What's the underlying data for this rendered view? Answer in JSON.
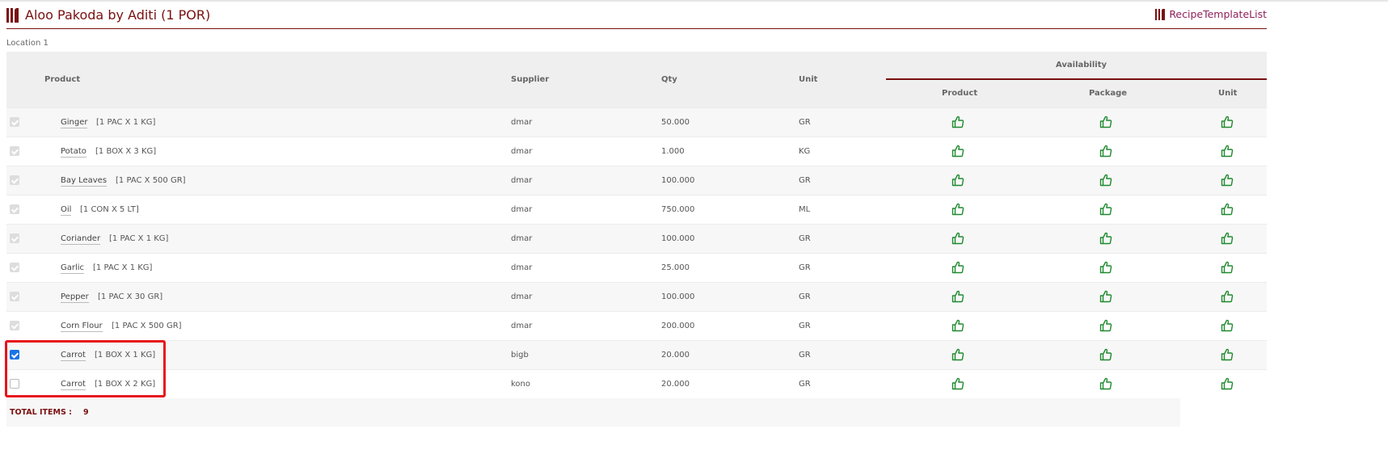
{
  "header": {
    "title": "Aloo Pakoda by Aditi (1 POR)",
    "link_label": "RecipeTemplateList"
  },
  "location": "Location 1",
  "columns": {
    "product": "Product",
    "supplier": "Supplier",
    "qty": "Qty",
    "unit": "Unit",
    "availability": "Availability",
    "avail_product": "Product",
    "avail_package": "Package",
    "avail_unit": "Unit"
  },
  "rows": [
    {
      "checkbox": "disabled-checked",
      "name": "Ginger",
      "pack": "[1 PAC X 1 KG]",
      "supplier": "dmar",
      "qty": "50.000",
      "unit": "GR",
      "availability": [
        "thumbs-up",
        "thumbs-up",
        "thumbs-up"
      ]
    },
    {
      "checkbox": "disabled-checked",
      "name": "Potato",
      "pack": "[1 BOX X 3 KG]",
      "supplier": "dmar",
      "qty": "1.000",
      "unit": "KG",
      "availability": [
        "thumbs-up",
        "thumbs-up",
        "thumbs-up"
      ]
    },
    {
      "checkbox": "disabled-checked",
      "name": "Bay Leaves",
      "pack": "[1 PAC X 500 GR]",
      "supplier": "dmar",
      "qty": "100.000",
      "unit": "GR",
      "availability": [
        "thumbs-up",
        "thumbs-up",
        "thumbs-up"
      ]
    },
    {
      "checkbox": "disabled-checked",
      "name": "Oil",
      "pack": "[1 CON X 5 LT]",
      "supplier": "dmar",
      "qty": "750.000",
      "unit": "ML",
      "availability": [
        "thumbs-up",
        "thumbs-up",
        "thumbs-up"
      ]
    },
    {
      "checkbox": "disabled-checked",
      "name": "Coriander",
      "pack": "[1 PAC X 1 KG]",
      "supplier": "dmar",
      "qty": "100.000",
      "unit": "GR",
      "availability": [
        "thumbs-up",
        "thumbs-up",
        "thumbs-up"
      ]
    },
    {
      "checkbox": "disabled-checked",
      "name": "Garlic",
      "pack": "[1 PAC X 1 KG]",
      "supplier": "dmar",
      "qty": "25.000",
      "unit": "GR",
      "availability": [
        "thumbs-up",
        "thumbs-up",
        "thumbs-up"
      ]
    },
    {
      "checkbox": "disabled-checked",
      "name": "Pepper",
      "pack": "[1 PAC X 30 GR]",
      "supplier": "dmar",
      "qty": "100.000",
      "unit": "GR",
      "availability": [
        "thumbs-up",
        "thumbs-up",
        "thumbs-up"
      ]
    },
    {
      "checkbox": "disabled-checked",
      "name": "Corn Flour",
      "pack": "[1 PAC X 500 GR]",
      "supplier": "dmar",
      "qty": "200.000",
      "unit": "GR",
      "availability": [
        "thumbs-up",
        "thumbs-up",
        "thumbs-up"
      ]
    },
    {
      "checkbox": "checked",
      "name": "Carrot",
      "pack": "[1 BOX X 1 KG]",
      "supplier": "bigb",
      "qty": "20.000",
      "unit": "GR",
      "availability": [
        "thumbs-up",
        "thumbs-up",
        "thumbs-up"
      ]
    },
    {
      "checkbox": "unchecked",
      "name": "Carrot",
      "pack": "[1 BOX X 2 KG]",
      "supplier": "kono",
      "qty": "20.000",
      "unit": "GR",
      "availability": [
        "thumbs-up",
        "thumbs-up",
        "thumbs-up"
      ]
    }
  ],
  "footer": {
    "label": "TOTAL ITEMS :",
    "count": "9"
  },
  "colors": {
    "brand": "#7a1010",
    "thumb": "#1e8a2e",
    "highlight": "#e8141b",
    "checkbox": "#1a73e8"
  }
}
